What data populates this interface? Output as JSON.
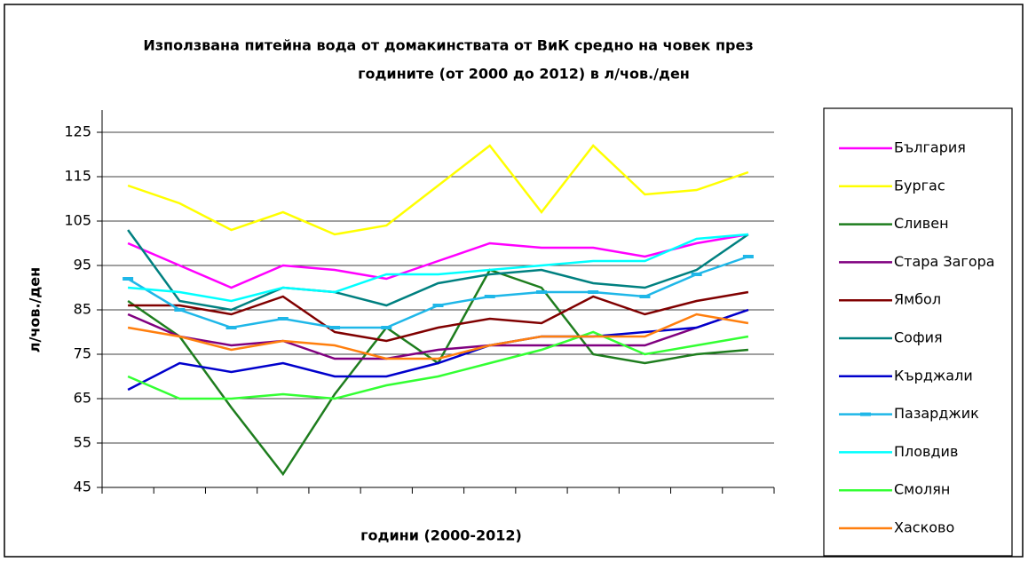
{
  "chart_data": {
    "type": "line",
    "title": [
      "Използвана питейна вода от домакинствата от ВиК средно на човек през",
      "годините (от 2000 до 2012) в л/чов./ден"
    ],
    "x_label": "години (2000-2012)",
    "y_label": "л/чов./ден",
    "categories": [
      null,
      null,
      null,
      null,
      null,
      null,
      null,
      null,
      null,
      null,
      null,
      null,
      null
    ],
    "ylim": [
      45,
      125
    ],
    "yticks": [
      45,
      55,
      65,
      75,
      85,
      95,
      105,
      115,
      125
    ],
    "grid": true,
    "legend": "right",
    "series": [
      {
        "name": "България",
        "color": "#ff00ff",
        "values": [
          100,
          95,
          90,
          95,
          94,
          92,
          96,
          100,
          99,
          99,
          97,
          100,
          102
        ]
      },
      {
        "name": "Бургас",
        "color": "#ffff00",
        "values": [
          113,
          109,
          103,
          107,
          102,
          104,
          113,
          122,
          107,
          122,
          111,
          112,
          116
        ]
      },
      {
        "name": "Сливен",
        "color": "#1e7d1e",
        "values": [
          87,
          79,
          63,
          48,
          66,
          81,
          73,
          94,
          90,
          75,
          73,
          75,
          76
        ]
      },
      {
        "name": "Стара Загора",
        "color": "#800080",
        "values": [
          84,
          79,
          77,
          78,
          74,
          74,
          76,
          77,
          77,
          77,
          77,
          81,
          85
        ]
      },
      {
        "name": "Ямбол",
        "color": "#800000",
        "values": [
          86,
          86,
          84,
          88,
          80,
          78,
          81,
          83,
          82,
          88,
          84,
          87,
          89
        ]
      },
      {
        "name": "София",
        "color": "#008080",
        "values": [
          103,
          87,
          85,
          90,
          89,
          86,
          91,
          93,
          94,
          91,
          90,
          94,
          102
        ]
      },
      {
        "name": "Кърджали",
        "color": "#0000cc",
        "values": [
          67,
          73,
          71,
          73,
          70,
          70,
          73,
          77,
          79,
          79,
          80,
          81,
          85
        ]
      },
      {
        "name": "Пазарджик",
        "color": "#1fb7e8",
        "marker": "dash",
        "values": [
          92,
          85,
          81,
          83,
          81,
          81,
          86,
          88,
          89,
          89,
          88,
          93,
          97
        ]
      },
      {
        "name": "Пловдив",
        "color": "#00ffff",
        "values": [
          90,
          89,
          87,
          90,
          89,
          93,
          93,
          94,
          95,
          96,
          96,
          101,
          102
        ]
      },
      {
        "name": "Смолян",
        "color": "#33ff33",
        "values": [
          70,
          65,
          65,
          66,
          65,
          68,
          70,
          73,
          76,
          80,
          75,
          77,
          79
        ]
      },
      {
        "name": "Хасково",
        "color": "#ff7f0e",
        "values": [
          81,
          79,
          76,
          78,
          77,
          74,
          74,
          77,
          79,
          79,
          79,
          84,
          82
        ]
      }
    ]
  }
}
